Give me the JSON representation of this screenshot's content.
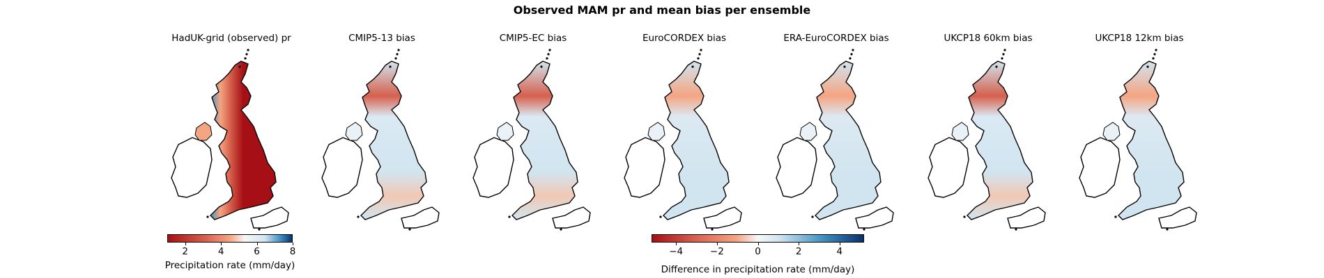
{
  "figure": {
    "title": "Observed MAM pr and mean bias per ensemble"
  },
  "panels": [
    {
      "title": "HadUK-grid (observed) pr",
      "kind": "observed"
    },
    {
      "title": "CMIP5-13 bias",
      "kind": "bias",
      "north_bias": "strong",
      "south_bias": "mild"
    },
    {
      "title": "CMIP5-EC bias",
      "kind": "bias",
      "north_bias": "strong",
      "south_bias": "mild"
    },
    {
      "title": "EuroCORDEX bias",
      "kind": "bias",
      "north_bias": "weak",
      "south_bias": "none"
    },
    {
      "title": "ERA-EuroCORDEX bias",
      "kind": "bias",
      "north_bias": "weak",
      "south_bias": "none"
    },
    {
      "title": "UKCP18 60km bias",
      "kind": "bias",
      "north_bias": "strong",
      "south_bias": "mild"
    },
    {
      "title": "UKCP18 12km bias",
      "kind": "bias",
      "north_bias": "weak",
      "south_bias": "none"
    }
  ],
  "colorbars": {
    "observed": {
      "label": "Precipitation rate (mm/day)",
      "colormap": "RdBu",
      "range": [
        1,
        8
      ],
      "ticks": [
        "2",
        "4",
        "6",
        "8"
      ],
      "tick_values": [
        2,
        4,
        6,
        8
      ]
    },
    "bias": {
      "label": "Difference in precipitation rate (mm/day)",
      "colormap": "RdBu",
      "range": [
        -5.2,
        5.2
      ],
      "ticks": [
        "−4",
        "−2",
        "0",
        "2",
        "4"
      ],
      "tick_values": [
        -4,
        -2,
        0,
        2,
        4
      ]
    }
  },
  "colors": {
    "dark_red": "#a50f15",
    "red": "#d6604d",
    "light_red": "#f4a582",
    "white": "#f7f7f7",
    "light_blue": "#d1e5f0",
    "blue": "#4393c3",
    "dark_blue": "#08306b"
  }
}
